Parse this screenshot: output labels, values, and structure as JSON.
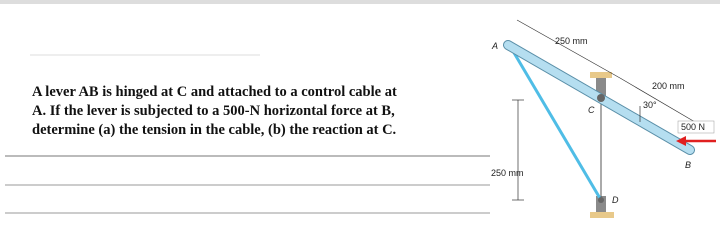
{
  "problem": {
    "lines": [
      "A lever AB is hinged at C and attached to a control cable at",
      "A. If the lever is subjected to a 500-N horizontal force at B,",
      "determine (a) the tension in the cable, (b) the reaction at C."
    ]
  },
  "figure": {
    "labels": {
      "A": "A",
      "top_dim": "250 mm",
      "right_dim": "200 mm",
      "angle": "30°",
      "force": "500 N",
      "B": "B",
      "C": "C",
      "vert_dim": "250 mm",
      "D": "D"
    }
  }
}
